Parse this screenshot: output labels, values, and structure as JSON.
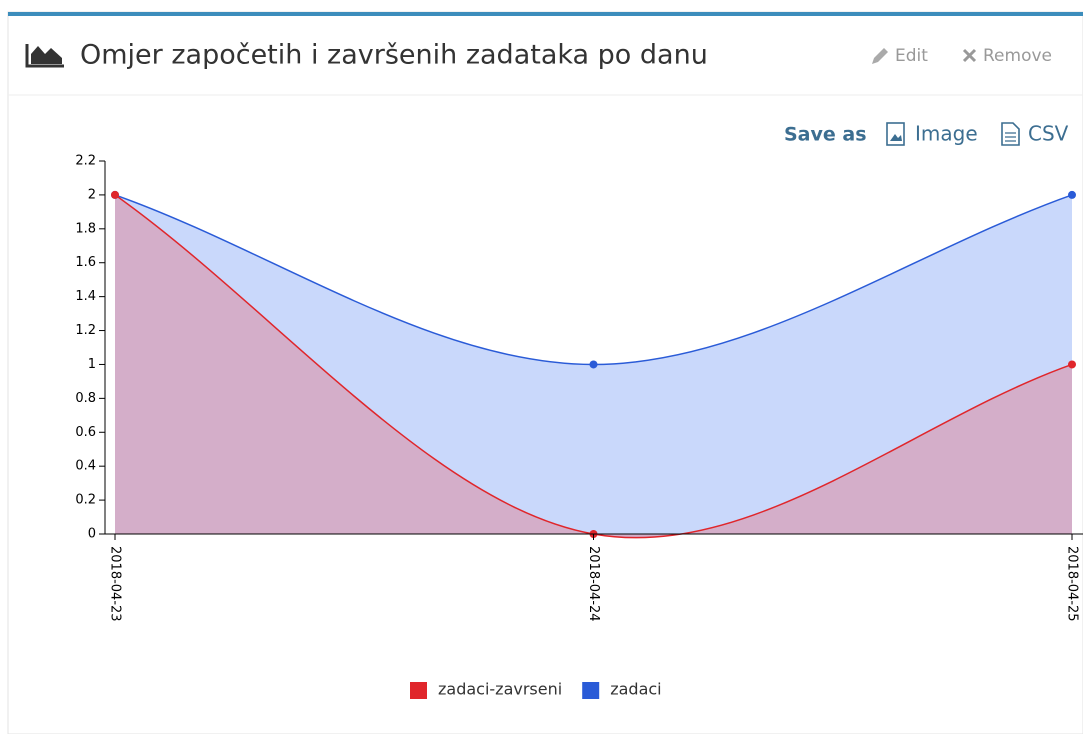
{
  "header": {
    "title": "Omjer započetih i završenih zadataka po danu",
    "actions": [
      "Edit",
      "Remove"
    ]
  },
  "export": {
    "label": "Save as",
    "options": [
      "Image",
      "CSV"
    ]
  },
  "chart_data": {
    "type": "area",
    "categories": [
      "2018-04-23",
      "2018-04-24",
      "2018-04-25"
    ],
    "series": [
      {
        "name": "zadaci-zavrseni",
        "color": "#e0262b",
        "fill": "#d4aec9",
        "values": [
          2,
          0,
          1
        ]
      },
      {
        "name": "zadaci",
        "color": "#2a5bd7",
        "fill": "#c9d8fb",
        "values": [
          2,
          1,
          2
        ]
      }
    ],
    "ylim": [
      0,
      2.2
    ],
    "yticks": [
      0,
      0.2,
      0.4,
      0.6,
      0.8,
      1,
      1.2,
      1.4,
      1.6,
      1.8,
      2,
      2.2
    ],
    "legend": "bottom"
  }
}
